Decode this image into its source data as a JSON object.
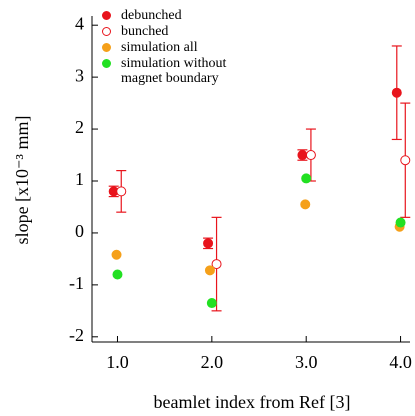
{
  "chart_data": {
    "type": "scatter",
    "xlabel": "beamlet index from Ref [3]",
    "ylabel": "slope [x10⁻³ mm]",
    "xlim": [
      0.73,
      4.1
    ],
    "xticks": [
      {
        "value": 1,
        "label": "1.0"
      },
      {
        "value": 2,
        "label": "2.0"
      },
      {
        "value": 3,
        "label": "3.0"
      },
      {
        "value": 4,
        "label": "4.0"
      }
    ],
    "ylim": [
      -2.1,
      4.1
    ],
    "yticks": [
      -2,
      -1,
      0,
      1,
      2,
      3,
      4
    ],
    "legend": "top-left",
    "series": [
      {
        "name": "debunched",
        "color": "#e8141c",
        "open": false,
        "x": [
          0.96,
          1.96,
          2.96,
          3.96
        ],
        "values": [
          0.8,
          -0.2,
          1.5,
          2.7
        ],
        "errors": [
          0.1,
          0.1,
          0.1,
          0.9
        ]
      },
      {
        "name": "bunched",
        "color": "#e8141c",
        "open": true,
        "x": [
          1.04,
          2.05,
          3.05,
          4.05
        ],
        "values": [
          0.8,
          -0.6,
          1.5,
          1.4
        ],
        "errors": [
          0.4,
          0.9,
          0.5,
          1.1
        ]
      },
      {
        "name": "simulation all",
        "color": "#f5a01a",
        "open": false,
        "x": [
          0.99,
          1.98,
          2.99,
          3.99
        ],
        "values": [
          -0.42,
          -0.72,
          0.55,
          0.12
        ]
      },
      {
        "name": "simulation without magnet boundary",
        "color": "#22e022",
        "open": false,
        "x": [
          1.0,
          2.0,
          3.0,
          4.0
        ],
        "values": [
          -0.8,
          -1.35,
          1.05,
          0.2
        ]
      }
    ]
  }
}
